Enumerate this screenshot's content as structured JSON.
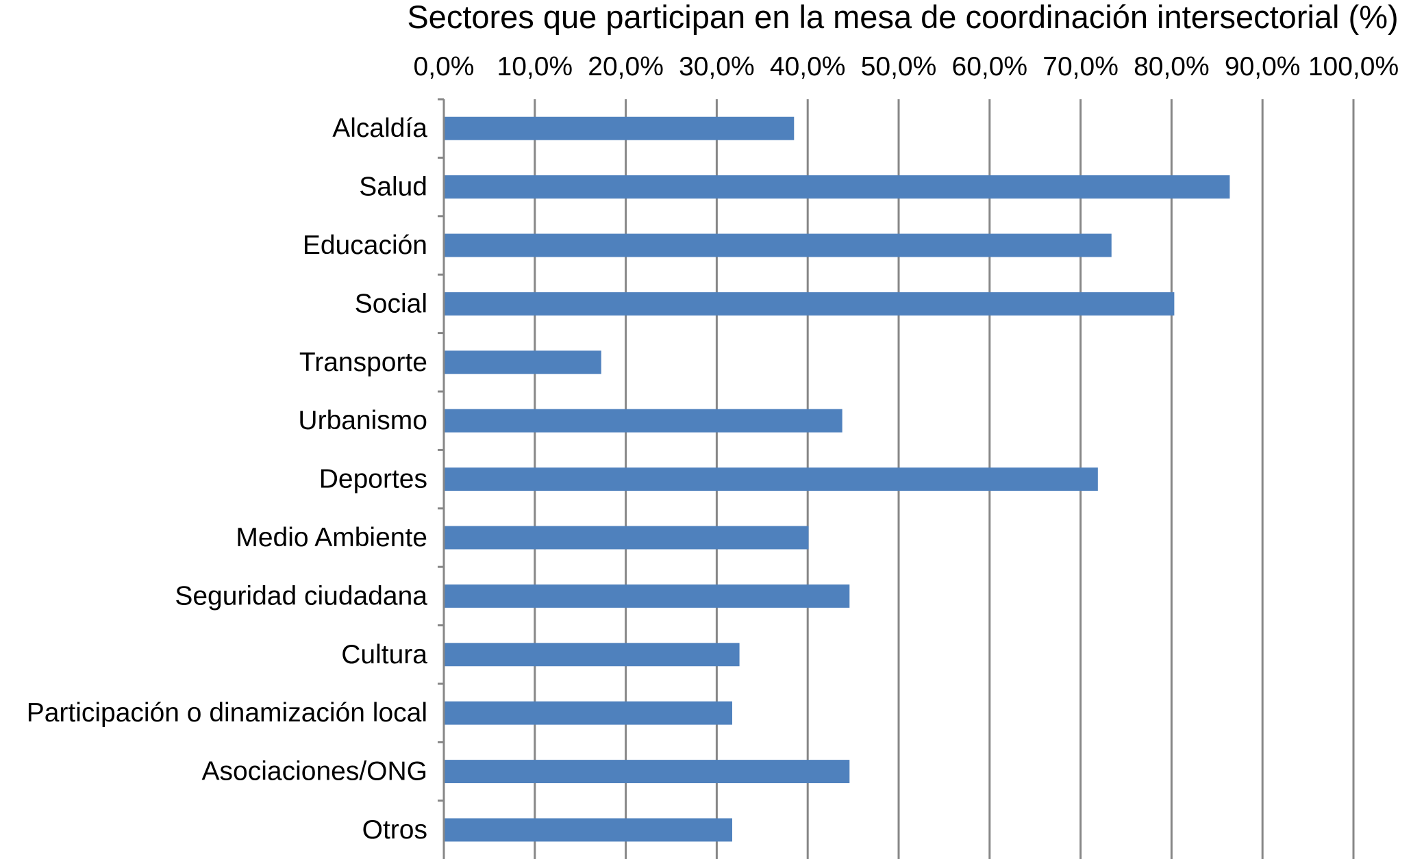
{
  "chart_data": {
    "type": "bar",
    "orientation": "horizontal",
    "title": "Sectores que participan en la mesa de coordinación intersectorial (%)",
    "xlabel": "",
    "ylabel": "",
    "xlim": [
      0,
      100
    ],
    "x_ticks": [
      0,
      10,
      20,
      30,
      40,
      50,
      60,
      70,
      80,
      90,
      100
    ],
    "x_tick_labels": [
      "0,0%",
      "10,0%",
      "20,0%",
      "30,0%",
      "40,0%",
      "50,0%",
      "60,0%",
      "70,0%",
      "80,0%",
      "90,0%",
      "100,0%"
    ],
    "x_axis_position": "top",
    "grid": true,
    "legend": "none",
    "categories": [
      "Alcaldía",
      "Salud",
      "Educación",
      "Social",
      "Transporte",
      "Urbanismo",
      "Deportes",
      "Medio Ambiente",
      "Seguridad ciudadana",
      "Cultura",
      "Participación o dinamización local",
      "Asociaciones/ONG",
      "Otros"
    ],
    "values": [
      38.5,
      86.4,
      73.4,
      80.3,
      17.3,
      43.8,
      71.9,
      40.1,
      44.6,
      32.5,
      31.7,
      44.6,
      31.7
    ],
    "bar_color": "#4F81BD",
    "grid_color": "#878787"
  }
}
